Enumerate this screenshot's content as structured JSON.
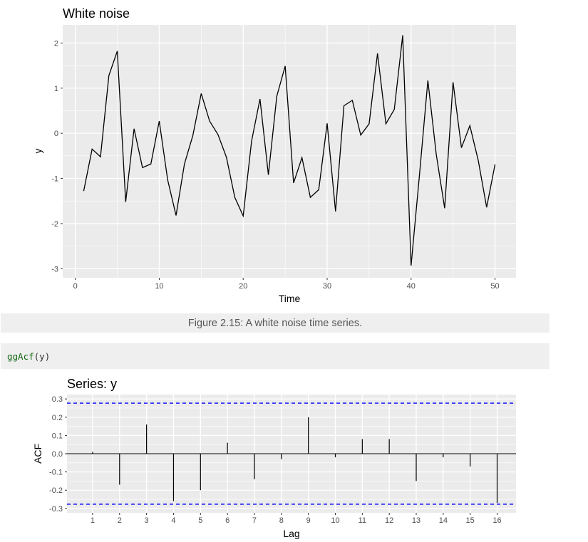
{
  "caption": "Figure 2.15: A white noise time series.",
  "code": {
    "fn": "ggAcf",
    "args": "(y)"
  },
  "colors": {
    "panel": "#ebebeb",
    "grid": "#ffffff",
    "line": "#000000",
    "ci": "#0000ff"
  },
  "chart_data": [
    {
      "type": "line",
      "title": "White noise",
      "xlabel": "Time",
      "ylabel": "y",
      "xlim": [
        -1.5,
        52.5
      ],
      "ylim": [
        -3.2,
        2.4
      ],
      "xticks": [
        0,
        10,
        20,
        30,
        40,
        50
      ],
      "yticks": [
        -3,
        -2,
        -1,
        0,
        1,
        2
      ],
      "grid": true,
      "x": [
        1,
        2,
        3,
        4,
        5,
        6,
        7,
        8,
        9,
        10,
        11,
        12,
        13,
        14,
        15,
        16,
        17,
        18,
        19,
        20,
        21,
        22,
        23,
        24,
        25,
        26,
        27,
        28,
        29,
        30,
        31,
        32,
        33,
        34,
        35,
        36,
        37,
        38,
        39,
        40,
        41,
        42,
        43,
        44,
        45,
        46,
        47,
        48,
        49,
        50
      ],
      "values": [
        -1.28,
        -0.35,
        -0.52,
        1.28,
        1.82,
        -1.52,
        0.1,
        -0.76,
        -0.68,
        0.27,
        -1.03,
        -1.82,
        -0.68,
        -0.05,
        0.88,
        0.27,
        -0.03,
        -0.53,
        -1.42,
        -1.83,
        -0.17,
        0.76,
        -0.92,
        0.82,
        1.49,
        -1.1,
        -0.54,
        -1.42,
        -1.25,
        0.22,
        -1.73,
        0.61,
        0.73,
        -0.04,
        0.21,
        1.77,
        0.21,
        0.53,
        2.17,
        -2.93,
        -0.92,
        1.17,
        -0.47,
        -1.66,
        1.13,
        -0.32,
        0.17,
        -0.6,
        -1.64,
        -0.69
      ]
    },
    {
      "type": "bar",
      "title": "Series: y",
      "xlabel": "Lag",
      "ylabel": "ACF",
      "xlim": [
        0.05,
        16.7
      ],
      "ylim": [
        -0.3,
        0.3
      ],
      "yticks": [
        -0.3,
        -0.2,
        -0.1,
        0.0,
        0.1,
        0.2,
        0.3
      ],
      "ytick_labels": [
        "-0.3",
        "-0.2",
        "-0.1",
        "0.0",
        "0.1",
        "0.2",
        "0.3"
      ],
      "grid": true,
      "categories": [
        1,
        2,
        3,
        4,
        5,
        6,
        7,
        8,
        9,
        10,
        11,
        12,
        13,
        14,
        15,
        16
      ],
      "values": [
        0.01,
        -0.17,
        0.16,
        -0.26,
        -0.2,
        0.06,
        -0.14,
        -0.03,
        0.2,
        -0.02,
        0.08,
        0.08,
        -0.15,
        -0.02,
        -0.07,
        -0.27
      ],
      "confidence_limit": 0.277
    }
  ]
}
